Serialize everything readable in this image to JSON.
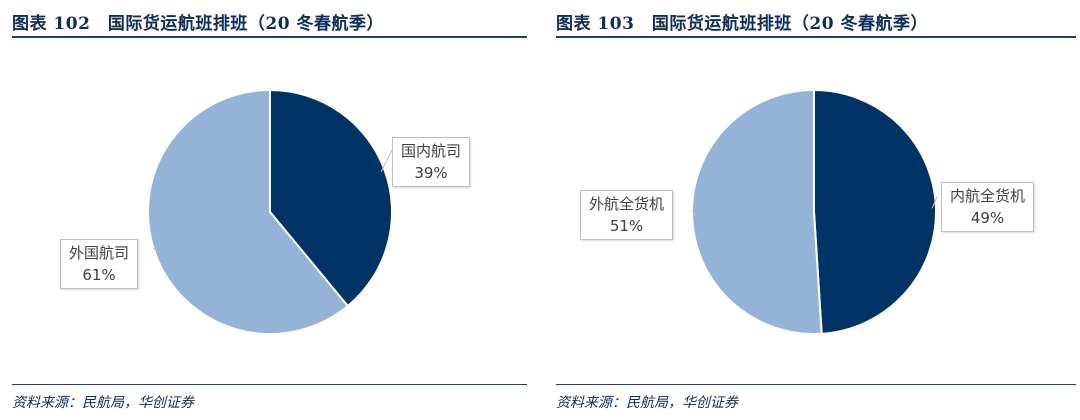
{
  "figures": [
    {
      "title": "图表 102　国际货运航班排班（20 冬春航季）",
      "source": "资料来源：民航局，华创证券"
    },
    {
      "title": "图表 103　国际货运航班排班（20 冬春航季）",
      "source": "资料来源：民航局，华创证券"
    }
  ],
  "colors": {
    "dark": "#003366",
    "light": "#95b3d7",
    "rule": "#1f3f73"
  },
  "chart_data": [
    {
      "type": "pie",
      "title": "",
      "slices": [
        {
          "label": "国内航司",
          "value": 39,
          "pct_label": "39%",
          "color": "#003366"
        },
        {
          "label": "外国航司",
          "value": 61,
          "pct_label": "61%",
          "color": "#95b3d7"
        }
      ]
    },
    {
      "type": "pie",
      "title": "",
      "slices": [
        {
          "label": "内航全货机",
          "value": 49,
          "pct_label": "49%",
          "color": "#003366"
        },
        {
          "label": "外航全货机",
          "value": 51,
          "pct_label": "51%",
          "color": "#95b3d7"
        }
      ]
    }
  ]
}
